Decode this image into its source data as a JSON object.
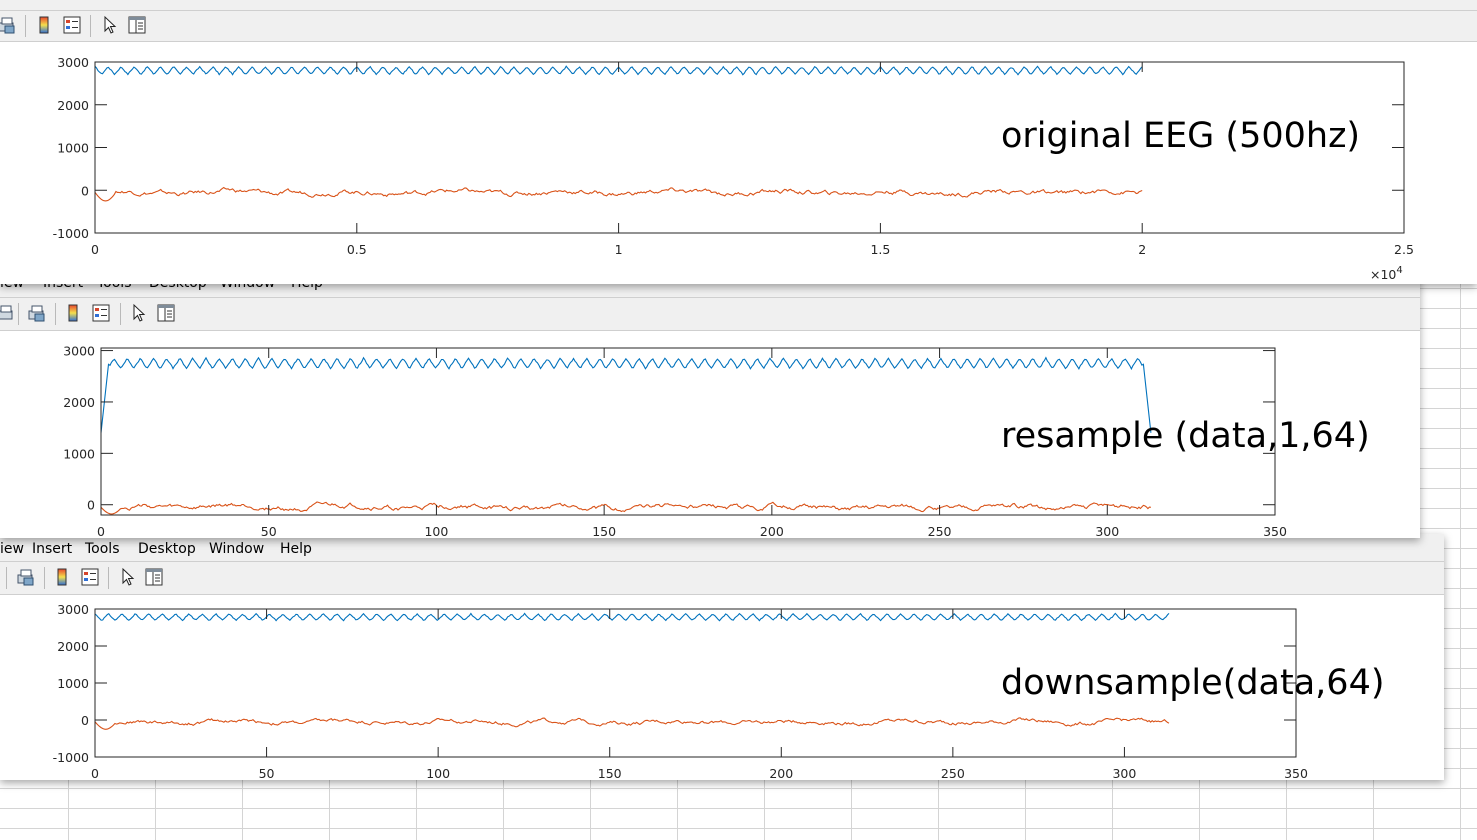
{
  "figures": [
    {
      "id": "fig1",
      "menu": [],
      "chart_data": {
        "type": "line",
        "title": "",
        "annotation": "original EEG (500hz)",
        "xlabel": "",
        "ylabel": "",
        "xlim": [
          0,
          2.5
        ],
        "ylim": [
          -1000,
          3000
        ],
        "x_exponent": "10^4",
        "xticks": [
          0,
          0.5,
          1,
          1.5,
          2,
          2.5
        ],
        "xtick_labels": [
          "0",
          "0.5",
          "1",
          "1.5",
          "2",
          "2.5"
        ],
        "yticks": [
          -1000,
          0,
          1000,
          2000,
          3000
        ],
        "ytick_labels": [
          "-1000",
          "0",
          "1000",
          "2000",
          "3000"
        ],
        "grid": false,
        "series": [
          {
            "color": "#0072bd",
            "x_range": [
              0,
              2.0
            ],
            "x_range_units": "10^4 samples",
            "baseline": 2800,
            "amplitude": 90,
            "cycles": 80,
            "shape": "oscillating"
          },
          {
            "color": "#d95319",
            "x_range": [
              0,
              2.0
            ],
            "x_range_units": "10^4 samples",
            "baseline": -50,
            "amplitude": 80,
            "start_dip": -250,
            "shape": "noisy"
          }
        ]
      }
    },
    {
      "id": "fig2",
      "menu": [
        "iew",
        "Insert",
        "Tools",
        "Desktop",
        "Window",
        "Help"
      ],
      "chart_data": {
        "type": "line",
        "title": "",
        "annotation": "resample (data,1,64)",
        "xlabel": "",
        "ylabel": "",
        "xlim": [
          0,
          350
        ],
        "ylim": [
          -200,
          3050
        ],
        "xticks": [
          0,
          50,
          100,
          150,
          200,
          250,
          300,
          350
        ],
        "xtick_labels": [
          "0",
          "50",
          "100",
          "150",
          "200",
          "250",
          "300",
          "350"
        ],
        "yticks": [
          0,
          1000,
          2000,
          3000
        ],
        "ytick_labels": [
          "0",
          "1000",
          "2000",
          "3000"
        ],
        "grid": false,
        "series": [
          {
            "color": "#0072bd",
            "x_range": [
              0,
              313
            ],
            "baseline": 2750,
            "amplitude": 100,
            "cycles": 80,
            "start_value": 1400,
            "end_value": 1400,
            "edge_peak": 3000,
            "shape": "oscillating"
          },
          {
            "color": "#d95319",
            "x_range": [
              0,
              313
            ],
            "baseline": -50,
            "amplitude": 70,
            "start_dip": -180,
            "shape": "noisy"
          }
        ]
      }
    },
    {
      "id": "fig3",
      "menu": [
        "iew",
        "Insert",
        "Tools",
        "Desktop",
        "Window",
        "Help"
      ],
      "chart_data": {
        "type": "line",
        "title": "",
        "annotation": "downsample(data,64)",
        "xlabel": "",
        "ylabel": "",
        "xlim": [
          0,
          350
        ],
        "ylim": [
          -1000,
          3000
        ],
        "xticks": [
          0,
          50,
          100,
          150,
          200,
          250,
          300,
          350
        ],
        "xtick_labels": [
          "0",
          "50",
          "100",
          "150",
          "200",
          "250",
          "300",
          "350"
        ],
        "yticks": [
          -1000,
          0,
          1000,
          2000,
          3000
        ],
        "ytick_labels": [
          "-1000",
          "0",
          "1000",
          "2000",
          "3000"
        ],
        "grid": false,
        "series": [
          {
            "color": "#0072bd",
            "x_range": [
              0,
              313
            ],
            "baseline": 2780,
            "amplitude": 90,
            "cycles": 80,
            "shape": "oscillating"
          },
          {
            "color": "#d95319",
            "x_range": [
              0,
              313
            ],
            "baseline": -50,
            "amplitude": 80,
            "start_dip": -250,
            "shape": "noisy"
          }
        ]
      }
    }
  ],
  "toolbar_icons": [
    "print-preview-icon",
    "colorbar-icon",
    "legend-icon",
    "pointer-icon",
    "property-editor-icon"
  ]
}
